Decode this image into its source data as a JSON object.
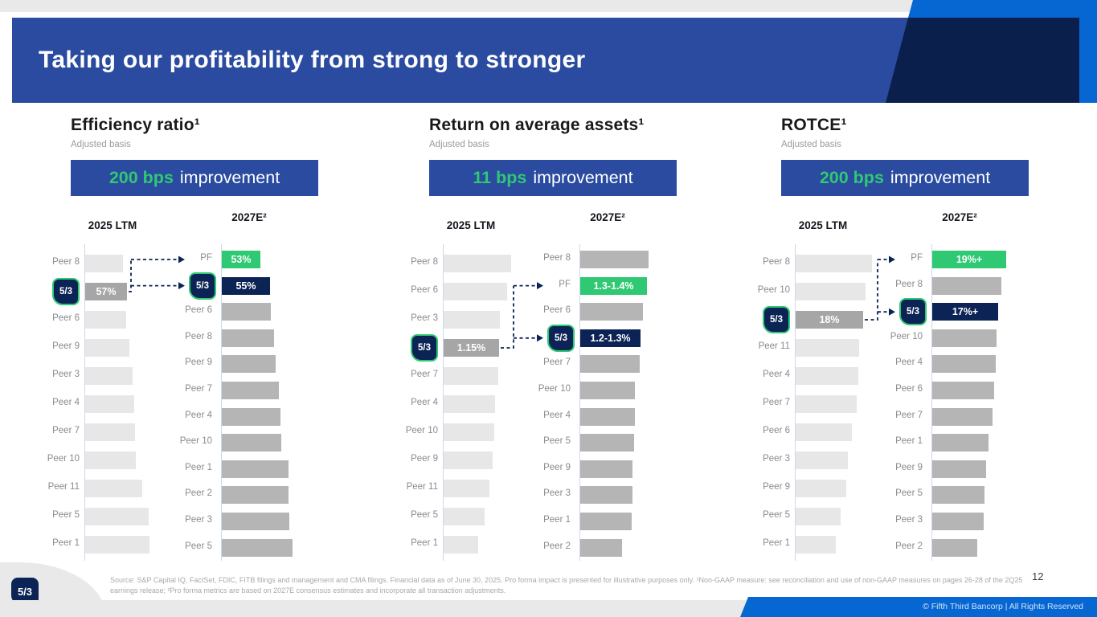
{
  "slide": {
    "title": "Taking our profitability from strong to stronger",
    "page_number": "12",
    "copyright": "© Fifth Third Bancorp | All Rights Reserved",
    "footnote": "Source: S&P Capital IQ, FactSet, FDIC, FITB filings and management and CMA filings. Financial data as of June 30, 2025. Pro forma impact is presented for illustrative purposes only. ¹Non-GAAP measure: see reconciliation and use of non-GAAP measures on pages 26-28 of the 2Q25 earnings release; ²Pro forma metrics are based on 2027E consensus estimates and incorporate all transaction adjustments.",
    "logo_text": "5/3"
  },
  "colors": {
    "banner_blue": "#2a4b9f",
    "bright_blue": "#0767d2",
    "navy_accent": "#0a1f4c",
    "navy_bar": "#0b2355",
    "green": "#2fc873",
    "bar_light_gray": "#e7e7e7",
    "bar_mid_gray": "#b5b5b5",
    "bar_fitb_gray": "#a6a6a6"
  },
  "chart_data": [
    {
      "type": "bar",
      "orientation": "horizontal",
      "title": "Efficiency ratio¹",
      "subtitle": "Adjusted basis",
      "banner_highlight": "200 bps",
      "banner_rest": "improvement",
      "col1_header": "2025 LTM",
      "col2_header": "2027E²",
      "col1_rows": [
        {
          "label": "Peer 8",
          "len": 47
        },
        {
          "label": "5/3",
          "kind": "fitb",
          "len": 52,
          "value": "57%"
        },
        {
          "label": "Peer 6",
          "len": 51
        },
        {
          "label": "Peer 9",
          "len": 55
        },
        {
          "label": "Peer 3",
          "len": 59
        },
        {
          "label": "Peer 4",
          "len": 61
        },
        {
          "label": "Peer 7",
          "len": 62
        },
        {
          "label": "Peer 10",
          "len": 63
        },
        {
          "label": "Peer 11",
          "len": 71
        },
        {
          "label": "Peer 5",
          "len": 79
        },
        {
          "label": "Peer 1",
          "len": 80
        }
      ],
      "col2_rows": [
        {
          "label": "PF",
          "kind": "pf",
          "len": 48,
          "value": "53%"
        },
        {
          "label": "5/3",
          "kind": "fitb",
          "len": 60,
          "value": "55%"
        },
        {
          "label": "Peer 6",
          "len": 61
        },
        {
          "label": "Peer 8",
          "len": 65
        },
        {
          "label": "Peer 9",
          "len": 67
        },
        {
          "label": "Peer 7",
          "len": 71
        },
        {
          "label": "Peer 4",
          "len": 73
        },
        {
          "label": "Peer 10",
          "len": 74
        },
        {
          "label": "Peer 1",
          "len": 83
        },
        {
          "label": "Peer 2",
          "len": 83
        },
        {
          "label": "Peer 3",
          "len": 84
        },
        {
          "label": "Peer 5",
          "len": 88
        }
      ]
    },
    {
      "type": "bar",
      "orientation": "horizontal",
      "title": "Return on average assets¹",
      "subtitle": "Adjusted basis",
      "banner_highlight": "11 bps",
      "banner_rest": "improvement",
      "col1_header": "2025 LTM",
      "col2_header": "2027E²",
      "col1_rows": [
        {
          "label": "Peer 8",
          "len": 84
        },
        {
          "label": "Peer 6",
          "len": 79
        },
        {
          "label": "Peer 3",
          "len": 70
        },
        {
          "label": "5/3",
          "kind": "fitb",
          "len": 69,
          "value": "1.15%"
        },
        {
          "label": "Peer 7",
          "len": 68
        },
        {
          "label": "Peer 4",
          "len": 64
        },
        {
          "label": "Peer 10",
          "len": 63
        },
        {
          "label": "Peer 9",
          "len": 61
        },
        {
          "label": "Peer 11",
          "len": 57
        },
        {
          "label": "Peer 5",
          "len": 51
        },
        {
          "label": "Peer 1",
          "len": 43
        }
      ],
      "col2_rows": [
        {
          "label": "Peer 8",
          "len": 85
        },
        {
          "label": "PF",
          "kind": "pf",
          "len": 83,
          "value": "1.3-1.4%"
        },
        {
          "label": "Peer 6",
          "len": 78
        },
        {
          "label": "5/3",
          "kind": "fitb",
          "len": 75,
          "value": "1.2-1.3%"
        },
        {
          "label": "Peer 7",
          "len": 74
        },
        {
          "label": "Peer 10",
          "len": 68
        },
        {
          "label": "Peer 4",
          "len": 68
        },
        {
          "label": "Peer 5",
          "len": 67
        },
        {
          "label": "Peer 9",
          "len": 65
        },
        {
          "label": "Peer 3",
          "len": 65
        },
        {
          "label": "Peer 1",
          "len": 64
        },
        {
          "label": "Peer 2",
          "len": 52
        }
      ]
    },
    {
      "type": "bar",
      "orientation": "horizontal",
      "title": "ROTCE¹",
      "subtitle": "Adjusted basis",
      "banner_highlight": "200 bps",
      "banner_rest": "improvement",
      "col1_header": "2025 LTM",
      "col2_header": "2027E²",
      "col1_rows": [
        {
          "label": "Peer 8",
          "len": 95
        },
        {
          "label": "Peer 10",
          "len": 87
        },
        {
          "label": "5/3",
          "kind": "fitb",
          "len": 84,
          "value": "18%"
        },
        {
          "label": "Peer 11",
          "len": 79
        },
        {
          "label": "Peer 4",
          "len": 78
        },
        {
          "label": "Peer 7",
          "len": 76
        },
        {
          "label": "Peer 6",
          "len": 70
        },
        {
          "label": "Peer 3",
          "len": 65
        },
        {
          "label": "Peer 9",
          "len": 63
        },
        {
          "label": "Peer 5",
          "len": 56
        },
        {
          "label": "Peer 1",
          "len": 50
        }
      ],
      "col2_rows": [
        {
          "label": "PF",
          "kind": "pf",
          "len": 92,
          "value": "19%+"
        },
        {
          "label": "Peer 8",
          "len": 86
        },
        {
          "label": "5/3",
          "kind": "fitb",
          "len": 82,
          "value": "17%+"
        },
        {
          "label": "Peer 10",
          "len": 80
        },
        {
          "label": "Peer 4",
          "len": 79
        },
        {
          "label": "Peer 6",
          "len": 77
        },
        {
          "label": "Peer 7",
          "len": 75
        },
        {
          "label": "Peer 1",
          "len": 70
        },
        {
          "label": "Peer 9",
          "len": 67
        },
        {
          "label": "Peer 5",
          "len": 65
        },
        {
          "label": "Peer 3",
          "len": 64
        },
        {
          "label": "Peer 2",
          "len": 56
        }
      ]
    }
  ]
}
